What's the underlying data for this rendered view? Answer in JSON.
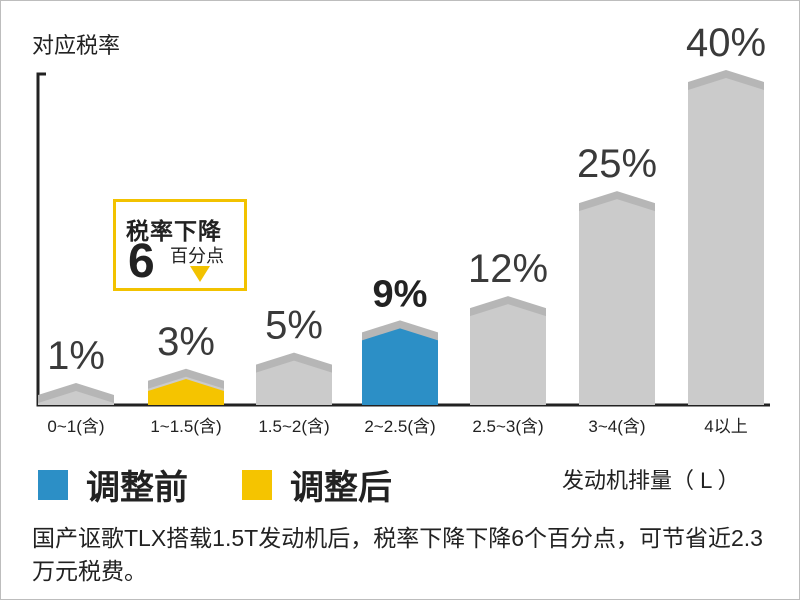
{
  "chart_data": {
    "type": "bar",
    "ylabel": "对应税率",
    "xlabel": "发动机排量（ L ）",
    "categories": [
      "0~1(含)",
      "1~1.5(含)",
      "1.5~2(含)",
      "2~2.5(含)",
      "2.5~3(含)",
      "3~4(含)",
      "4以上"
    ],
    "series": [
      {
        "name": "调整前",
        "values": [
          1,
          3,
          5,
          9,
          12,
          25,
          40
        ]
      },
      {
        "name": "调整后",
        "values": [
          null,
          1,
          null,
          null,
          null,
          null,
          null
        ]
      }
    ],
    "value_labels": [
      "1%",
      "3%",
      "5%",
      "9%",
      "12%",
      "25%",
      "40%"
    ],
    "highlight_index": 3,
    "ylim": [
      0,
      40
    ],
    "grid": false
  },
  "legend": [
    {
      "label": "调整前",
      "color": "#2c8fc6"
    },
    {
      "label": "调整后",
      "color": "#f5c400"
    }
  ],
  "callout": {
    "title": "税率下降",
    "number": "6",
    "unit": "百分点",
    "color": "#f2c200"
  },
  "note": "国产讴歌TLX搭载1.5T发动机后，税率下降下降6个百分点，可节省近2.3万元税费。",
  "colors": {
    "bar": "#cbcbcb",
    "bar_top": "#b6b6b6",
    "highlight": "#2c8fc6",
    "after": "#f5c400",
    "label": "#3a3a3a"
  }
}
